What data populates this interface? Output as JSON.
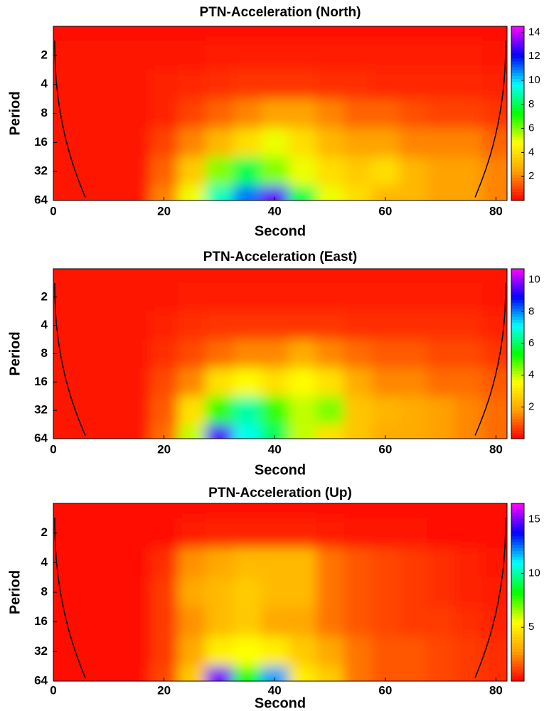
{
  "chart_data": [
    {
      "type": "heatmap",
      "title": "PTN-Acceleration (North)",
      "xlabel": "Second",
      "ylabel": "Period",
      "xlim": [
        0,
        82
      ],
      "xticks": [
        0,
        20,
        40,
        60,
        80
      ],
      "ylim": [
        1,
        64
      ],
      "yticks": [
        2,
        4,
        8,
        16,
        32,
        64
      ],
      "log_y": true,
      "y_reversed": true,
      "clim": [
        0,
        14.5
      ],
      "cticks": [
        2,
        4,
        6,
        8,
        10,
        12,
        14
      ],
      "colormap": [
        "#ff0000",
        "#ffa000",
        "#ffff00",
        "#00ff00",
        "#00ffff",
        "#0000ff",
        "#ff00ff"
      ],
      "x": [
        0,
        5,
        10,
        15,
        20,
        25,
        30,
        35,
        40,
        45,
        50,
        55,
        60,
        65,
        70,
        75,
        80
      ],
      "y": [
        1,
        2,
        4,
        8,
        16,
        32,
        64
      ],
      "z": [
        [
          0.2,
          0.2,
          0.2,
          0.2,
          0.2,
          0.2,
          0.2,
          0.2,
          0.2,
          0.2,
          0.2,
          0.2,
          0.2,
          0.2,
          0.2,
          0.2,
          0.2
        ],
        [
          0.3,
          0.3,
          0.3,
          0.3,
          0.3,
          0.3,
          0.4,
          0.4,
          0.4,
          0.4,
          0.4,
          0.4,
          0.4,
          0.4,
          0.4,
          0.4,
          0.3
        ],
        [
          0.3,
          0.3,
          0.3,
          0.3,
          0.5,
          0.6,
          0.7,
          0.8,
          0.8,
          0.8,
          0.7,
          0.7,
          0.6,
          0.6,
          0.6,
          0.6,
          0.5
        ],
        [
          0.3,
          0.3,
          0.3,
          0.3,
          0.5,
          1,
          1.5,
          2,
          2.5,
          2.5,
          2,
          1.5,
          1.5,
          1.2,
          1,
          1,
          0.8
        ],
        [
          0.3,
          0.3,
          0.3,
          0.3,
          1,
          2,
          3,
          4,
          5,
          4,
          3,
          2.5,
          2.5,
          2,
          2,
          2,
          1.5
        ],
        [
          0.3,
          0.3,
          0.3,
          0.3,
          1.5,
          3.5,
          6,
          8,
          6,
          5,
          4,
          3.5,
          4,
          3,
          2.5,
          2.5,
          2
        ],
        [
          0.3,
          0.3,
          0.3,
          0.3,
          2,
          5,
          9,
          11,
          13,
          8,
          5,
          4,
          3,
          3,
          2.5,
          2.5,
          2
        ]
      ]
    },
    {
      "type": "heatmap",
      "title": "PTN-Acceleration (East)",
      "xlabel": "Second",
      "ylabel": "Period",
      "xlim": [
        0,
        82
      ],
      "xticks": [
        0,
        20,
        40,
        60,
        80
      ],
      "ylim": [
        1,
        64
      ],
      "yticks": [
        2,
        4,
        8,
        16,
        32,
        64
      ],
      "log_y": true,
      "y_reversed": true,
      "clim": [
        0,
        10.7
      ],
      "cticks": [
        2,
        4,
        6,
        8,
        10
      ],
      "colormap": [
        "#ff0000",
        "#ffa000",
        "#ffff00",
        "#00ff00",
        "#00ffff",
        "#0000ff",
        "#ff00ff"
      ],
      "x": [
        0,
        5,
        10,
        15,
        20,
        25,
        30,
        35,
        40,
        45,
        50,
        55,
        60,
        65,
        70,
        75,
        80
      ],
      "y": [
        1,
        2,
        4,
        8,
        16,
        32,
        64
      ],
      "z": [
        [
          0.2,
          0.2,
          0.2,
          0.2,
          0.2,
          0.2,
          0.2,
          0.2,
          0.2,
          0.2,
          0.2,
          0.2,
          0.2,
          0.2,
          0.2,
          0.2,
          0.2
        ],
        [
          0.2,
          0.2,
          0.2,
          0.2,
          0.2,
          0.3,
          0.3,
          0.3,
          0.3,
          0.3,
          0.3,
          0.3,
          0.3,
          0.3,
          0.3,
          0.3,
          0.2
        ],
        [
          0.2,
          0.2,
          0.2,
          0.2,
          0.4,
          0.5,
          0.6,
          0.6,
          0.6,
          0.6,
          0.6,
          0.5,
          0.5,
          0.5,
          0.5,
          0.5,
          0.4
        ],
        [
          0.2,
          0.2,
          0.2,
          0.2,
          0.5,
          0.8,
          1.2,
          1.5,
          1.5,
          2,
          1.5,
          1.2,
          1,
          1,
          0.8,
          0.8,
          0.6
        ],
        [
          0.2,
          0.2,
          0.2,
          0.2,
          0.8,
          1.5,
          3,
          3.5,
          3,
          3.5,
          3,
          2,
          1.5,
          1.5,
          1.2,
          1.2,
          1
        ],
        [
          0.2,
          0.2,
          0.2,
          0.2,
          1,
          3,
          5,
          6.5,
          5,
          4,
          4.5,
          2.5,
          2.2,
          2,
          1.8,
          1.5,
          1.2
        ],
        [
          0.2,
          0.2,
          0.2,
          0.2,
          1.2,
          4,
          9.5,
          7,
          6,
          4,
          3,
          2.5,
          2,
          2,
          1.8,
          1.5,
          1.2
        ]
      ]
    },
    {
      "type": "heatmap",
      "title": "PTN-Acceleration (Up)",
      "xlabel": "Second",
      "ylabel": "Period",
      "xlim": [
        0,
        82
      ],
      "xticks": [
        0,
        20,
        40,
        60,
        80
      ],
      "ylim": [
        1,
        64
      ],
      "yticks": [
        2,
        4,
        8,
        16,
        32,
        64
      ],
      "log_y": true,
      "y_reversed": true,
      "clim": [
        0,
        16.5
      ],
      "cticks": [
        5,
        10,
        15
      ],
      "colormap": [
        "#ff0000",
        "#ffa000",
        "#ffff00",
        "#00ff00",
        "#00ffff",
        "#0000ff",
        "#ff00ff"
      ],
      "x": [
        0,
        5,
        10,
        15,
        20,
        25,
        30,
        35,
        40,
        45,
        50,
        55,
        60,
        65,
        70,
        75,
        80
      ],
      "y": [
        1,
        2,
        4,
        8,
        16,
        32,
        64
      ],
      "z": [
        [
          0.2,
          0.2,
          0.2,
          0.2,
          0.2,
          0.2,
          0.2,
          0.2,
          0.2,
          0.2,
          0.2,
          0.2,
          0.2,
          0.2,
          0.2,
          0.2,
          0.2
        ],
        [
          0.2,
          0.2,
          0.2,
          0.2,
          0.3,
          0.5,
          0.6,
          0.6,
          0.6,
          0.6,
          0.5,
          0.4,
          0.4,
          0.4,
          0.3,
          0.3,
          0.2
        ],
        [
          0.2,
          0.2,
          0.2,
          0.2,
          0.8,
          2.5,
          3,
          3.5,
          3.5,
          3.5,
          2,
          1.5,
          1.2,
          1,
          0.8,
          0.6,
          0.4
        ],
        [
          0.2,
          0.2,
          0.2,
          0.2,
          1,
          3,
          3.5,
          4,
          3.5,
          3.5,
          2,
          1.5,
          1.2,
          1,
          0.8,
          0.6,
          0.5
        ],
        [
          0.2,
          0.2,
          0.2,
          0.2,
          1,
          2.5,
          3.5,
          4,
          3,
          3,
          2,
          1.5,
          1.2,
          1,
          1,
          0.8,
          0.6
        ],
        [
          0.2,
          0.2,
          0.2,
          0.2,
          1,
          3,
          5,
          5.5,
          5,
          4,
          3,
          2,
          1.5,
          1.5,
          1.2,
          1,
          0.8
        ],
        [
          0.2,
          0.2,
          0.2,
          0.2,
          1.2,
          4,
          15,
          8,
          12,
          5,
          4,
          2,
          1.5,
          1.5,
          1.2,
          1,
          0.8
        ]
      ]
    }
  ]
}
